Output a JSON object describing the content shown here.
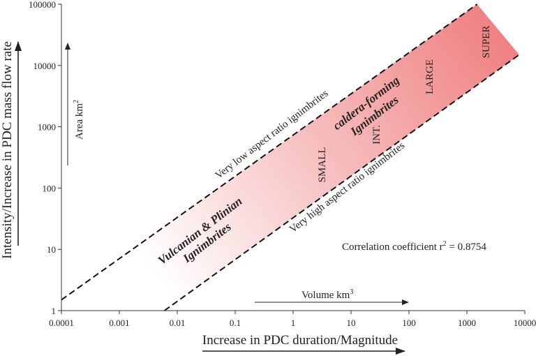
{
  "chart_data": {
    "type": "area",
    "title": "",
    "xlabel": "Increase in PDC duration/Magnitude",
    "ylabel": "Intensity/Increase in PDC mass flow rate",
    "xscale": "log",
    "yscale": "log",
    "xlim": [
      0.0001,
      10000
    ],
    "ylim": [
      1,
      100000
    ],
    "x_ticks": [
      "0.0001",
      "0.001",
      "0.01",
      "0.1",
      "1",
      "10",
      "100",
      "1000",
      "10000"
    ],
    "y_ticks": [
      "1",
      "10",
      "100",
      "1000",
      "10000",
      "100000"
    ],
    "grid": false,
    "bounds": [
      {
        "name": "upper",
        "label": "Very low aspect ratio ignimbrites",
        "x": [
          0.0001,
          1500
        ],
        "y": [
          1.5,
          100000
        ]
      },
      {
        "name": "lower",
        "label": "Very high aspect ratio ignimbrites",
        "x": [
          0.006,
          8000
        ],
        "y": [
          1,
          15000
        ]
      }
    ],
    "band_color_start": "#ffffff",
    "band_color_end": "#f08080",
    "region_labels": [
      "Vulcanian & Plinian",
      "Ignimbrites",
      "caldera-forming",
      "Ignimbrites"
    ],
    "class_labels": [
      "SMALL",
      "INT.",
      "LARGE",
      "SUPER"
    ],
    "correlation_text": "Correlation coefficient r",
    "correlation_sup": "2",
    "correlation_value": " = 0.8754",
    "volume_label": "Volume km",
    "volume_sup": "3",
    "area_label": "Area km",
    "area_sup": "2"
  }
}
